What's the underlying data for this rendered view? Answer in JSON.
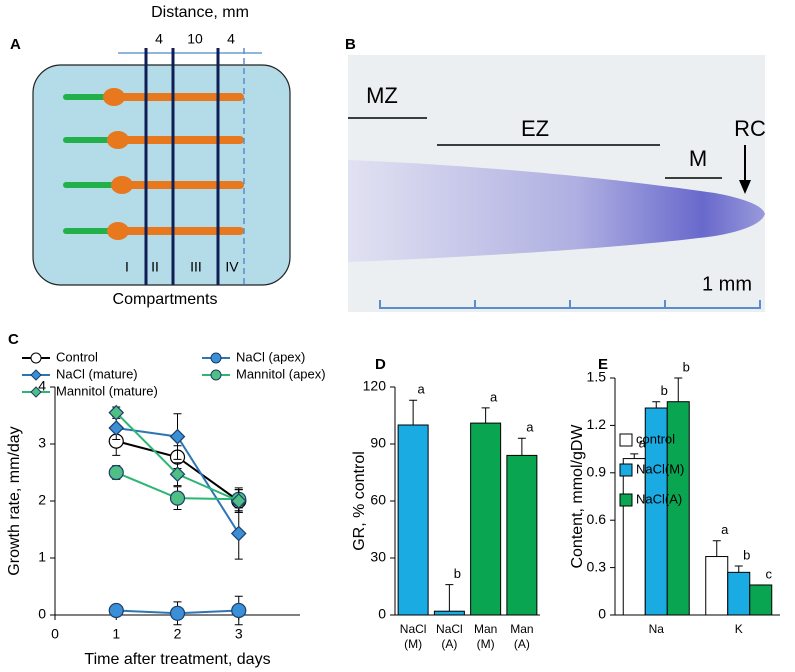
{
  "diagram": {
    "panel": "A",
    "title": "Distance, mm",
    "distances": [
      4,
      10,
      4
    ],
    "compartments": [
      "I",
      "II",
      "III",
      "IV"
    ],
    "caption": "Compartments"
  },
  "micrograph": {
    "panel": "B",
    "zones": [
      "MZ",
      "EZ",
      "M",
      "RC"
    ],
    "scale": "1 mm"
  },
  "chart_data": [
    {
      "panel": "C",
      "type": "line",
      "xlabel": "Time after treatment, days",
      "ylabel": "Growth rate, mm/day",
      "x": [
        1,
        2,
        3
      ],
      "xlim": [
        0,
        4
      ],
      "xticks": [
        0,
        1,
        2,
        3
      ],
      "ylim": [
        0,
        4
      ],
      "yticks": [
        0,
        1,
        2,
        3,
        4
      ],
      "series": [
        {
          "name": "Control",
          "color": "#000000",
          "marker": "circle",
          "marker_fill": "#ffffff",
          "values": [
            3.05,
            2.77,
            2.0
          ],
          "errors": [
            0.25,
            0.2,
            0.2
          ]
        },
        {
          "name": "NaCl (apex)",
          "color": "#2e75b6",
          "marker": "circle",
          "marker_fill": "#3a8fd6",
          "values": [
            0.08,
            0.03,
            0.08
          ],
          "errors": [
            0.08,
            0.2,
            0.25
          ]
        },
        {
          "name": "NaCl (mature)",
          "color": "#2e75b6",
          "marker": "diamond",
          "marker_fill": "#3a8fd6",
          "values": [
            3.28,
            3.13,
            1.43
          ],
          "errors": [
            0.2,
            0.4,
            0.45
          ]
        },
        {
          "name": "Mannitol (apex)",
          "color": "#2bb673",
          "marker": "circle",
          "marker_fill": "#4fbf85",
          "values": [
            2.5,
            2.05,
            2.03
          ],
          "errors": [
            0.12,
            0.2,
            0.2
          ]
        },
        {
          "name": "Mannitol (mature)",
          "color": "#2bb673",
          "marker": "diamond",
          "marker_fill": "#4fbf85",
          "values": [
            3.55,
            2.47,
            2.0
          ],
          "errors": [
            0.1,
            0.2,
            0.2
          ]
        }
      ]
    },
    {
      "panel": "D",
      "type": "bar",
      "ylabel": "GR, % control",
      "categories": [
        "NaCl (M)",
        "NaCl (A)",
        "Man (M)",
        "Man (A)"
      ],
      "values": [
        100,
        2,
        101,
        84
      ],
      "errors": [
        13,
        14,
        8,
        9
      ],
      "letters": [
        "a",
        "b",
        "a",
        "a"
      ],
      "colors": [
        "#1aabe3",
        "#1aabe3",
        "#0aa551",
        "#0aa551"
      ],
      "ylim": [
        0,
        120
      ],
      "yticks": [
        0,
        30,
        60,
        90,
        120
      ]
    },
    {
      "panel": "E",
      "type": "bar",
      "ylabel": "Content, mmol/gDW",
      "categories": [
        "Na",
        "K"
      ],
      "series": [
        {
          "name": "control",
          "color": "#ffffff",
          "values": [
            0.99,
            0.37
          ],
          "errors": [
            0.03,
            0.1
          ],
          "letters": [
            "a",
            "a"
          ]
        },
        {
          "name": "NaCl(M)",
          "color": "#1aabe3",
          "values": [
            1.31,
            0.27
          ],
          "errors": [
            0.04,
            0.04
          ],
          "letters": [
            "b",
            "b"
          ]
        },
        {
          "name": "NaCl(A)",
          "color": "#0aa551",
          "values": [
            1.35,
            0.19
          ],
          "errors": [
            0.15,
            0
          ],
          "letters": [
            "b",
            "c"
          ]
        }
      ],
      "ylim": [
        0,
        1.5
      ],
      "yticks": [
        0,
        0.3,
        0.6,
        0.9,
        1.2,
        1.5
      ]
    }
  ]
}
